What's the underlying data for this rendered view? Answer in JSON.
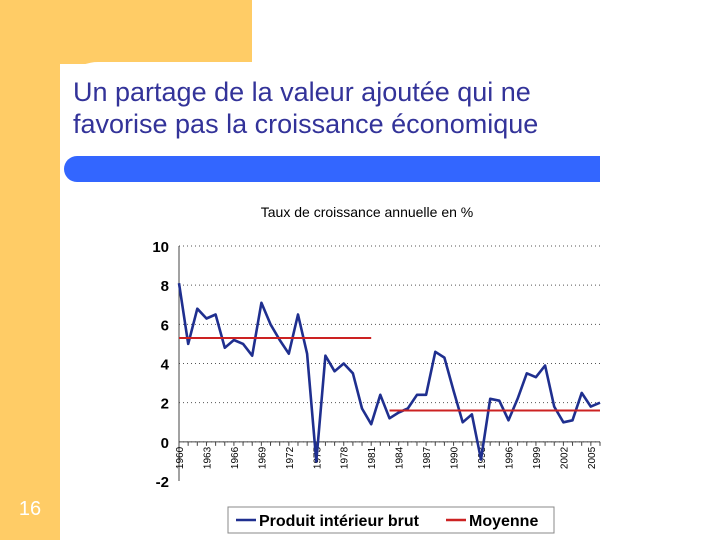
{
  "slide": {
    "title": "Un partage de la valeur ajoutée qui ne\nfavorise pas la croissance économique",
    "page_number": "16",
    "colors": {
      "background": "#ffffff",
      "decoration": "#ffcc66",
      "title_text": "#333399",
      "title_bar": "#3366ff"
    }
  },
  "chart_data": {
    "type": "line",
    "title": "Taux de croissance annuelle en %",
    "xlabel": "",
    "ylabel": "",
    "xlim": [
      1960,
      2006
    ],
    "ylim": [
      -2,
      10
    ],
    "y_ticks": [
      -2,
      0,
      2,
      4,
      6,
      8,
      10
    ],
    "x_ticks": [
      1960,
      1963,
      1966,
      1969,
      1972,
      1975,
      1978,
      1981,
      1984,
      1987,
      1990,
      1993,
      1996,
      1999,
      2002,
      2005
    ],
    "grid": true,
    "legend_position": "bottom",
    "series": [
      {
        "name": "Produit intérieur brut",
        "color": "#1f2f8f",
        "x": [
          1960,
          1961,
          1962,
          1963,
          1964,
          1965,
          1966,
          1967,
          1968,
          1969,
          1970,
          1971,
          1972,
          1973,
          1974,
          1975,
          1976,
          1977,
          1978,
          1979,
          1980,
          1981,
          1982,
          1983,
          1984,
          1985,
          1986,
          1987,
          1988,
          1989,
          1990,
          1991,
          1992,
          1993,
          1994,
          1995,
          1996,
          1997,
          1998,
          1999,
          2000,
          2001,
          2002,
          2003,
          2004,
          2005,
          2006
        ],
        "values": [
          8.1,
          5.0,
          6.8,
          6.3,
          6.5,
          4.8,
          5.2,
          5.0,
          4.4,
          7.1,
          6.0,
          5.2,
          4.5,
          6.5,
          4.5,
          -1.0,
          4.4,
          3.6,
          4.0,
          3.5,
          1.7,
          0.9,
          2.4,
          1.2,
          1.5,
          1.7,
          2.4,
          2.4,
          4.6,
          4.3,
          2.6,
          1.0,
          1.4,
          -0.9,
          2.2,
          2.1,
          1.1,
          2.2,
          3.5,
          3.3,
          3.9,
          1.8,
          1.0,
          1.1,
          2.5,
          1.8,
          2.0
        ]
      },
      {
        "name": "Moyenne",
        "color": "#cc2222",
        "segments": [
          {
            "x": [
              1960,
              1981
            ],
            "values": [
              5.3,
              5.3
            ]
          },
          {
            "x": [
              1983,
              2006
            ],
            "values": [
              1.6,
              1.6
            ]
          }
        ]
      }
    ]
  }
}
